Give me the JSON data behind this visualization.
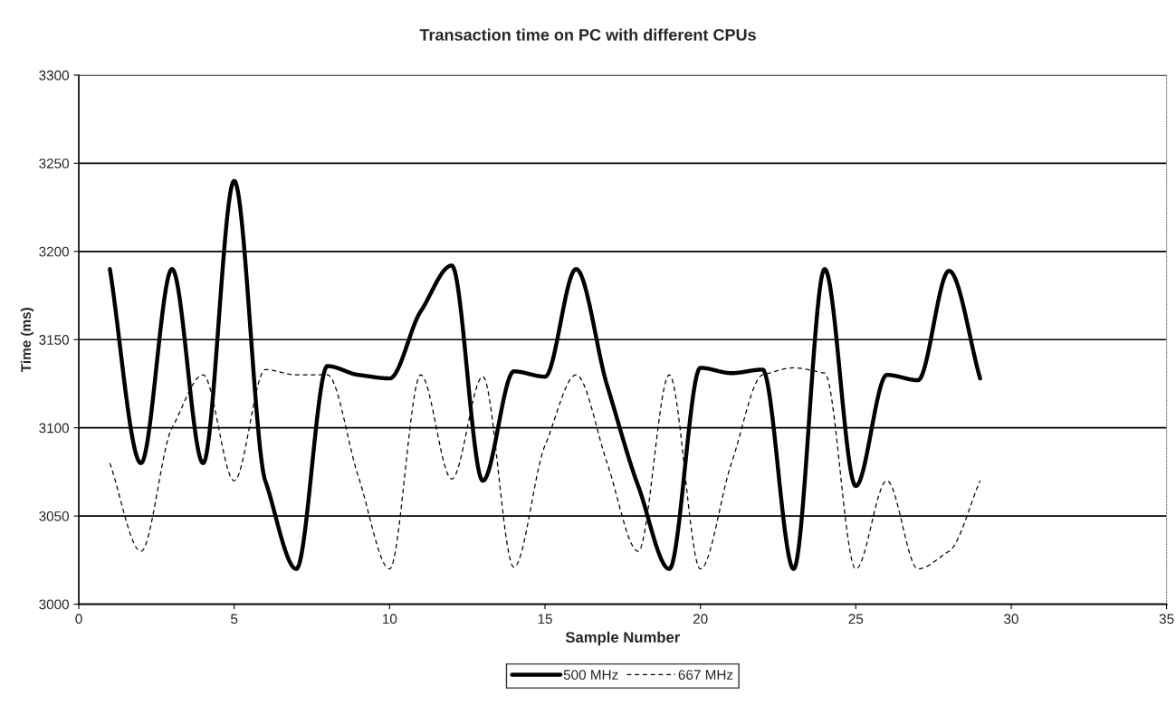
{
  "chart_data": {
    "type": "line",
    "title": "Transaction time on PC with different CPUs",
    "xlabel": "Sample Number",
    "ylabel": "Time (ms)",
    "x": [
      1,
      2,
      3,
      4,
      5,
      6,
      7,
      8,
      9,
      10,
      11,
      12,
      13,
      14,
      15,
      16,
      17,
      18,
      19,
      20,
      21,
      22,
      23,
      24,
      25,
      26,
      27,
      28,
      29
    ],
    "series": [
      {
        "name": "500 MHz",
        "color": "#000000",
        "line_style": "solid",
        "values": [
          3190,
          3080,
          3190,
          3080,
          3240,
          3070,
          3020,
          3135,
          3130,
          3128,
          3166,
          3192,
          3070,
          3132,
          3129,
          3190,
          3124,
          3067,
          3020,
          3134,
          3131,
          3133,
          3020,
          3190,
          3067,
          3130,
          3127,
          3189,
          3128
        ]
      },
      {
        "name": "667 MHz",
        "color": "#000000",
        "line_style": "dashed",
        "values": [
          3080,
          3030,
          3100,
          3130,
          3070,
          3133,
          3130,
          3130,
          3072,
          3020,
          3130,
          3071,
          3129,
          3021,
          3090,
          3130,
          3080,
          3030,
          3130,
          3020,
          3080,
          3130,
          3134,
          3131,
          3020,
          3070,
          3020,
          3030,
          3070
        ]
      }
    ],
    "xlim": [
      0,
      35
    ],
    "xticks": [
      0,
      5,
      10,
      15,
      20,
      25,
      30,
      35
    ],
    "ylim": [
      3000,
      3300
    ],
    "yticks": [
      3000,
      3050,
      3100,
      3150,
      3200,
      3250,
      3300
    ],
    "grid": "y",
    "legend": "bottom",
    "marker": "none"
  }
}
